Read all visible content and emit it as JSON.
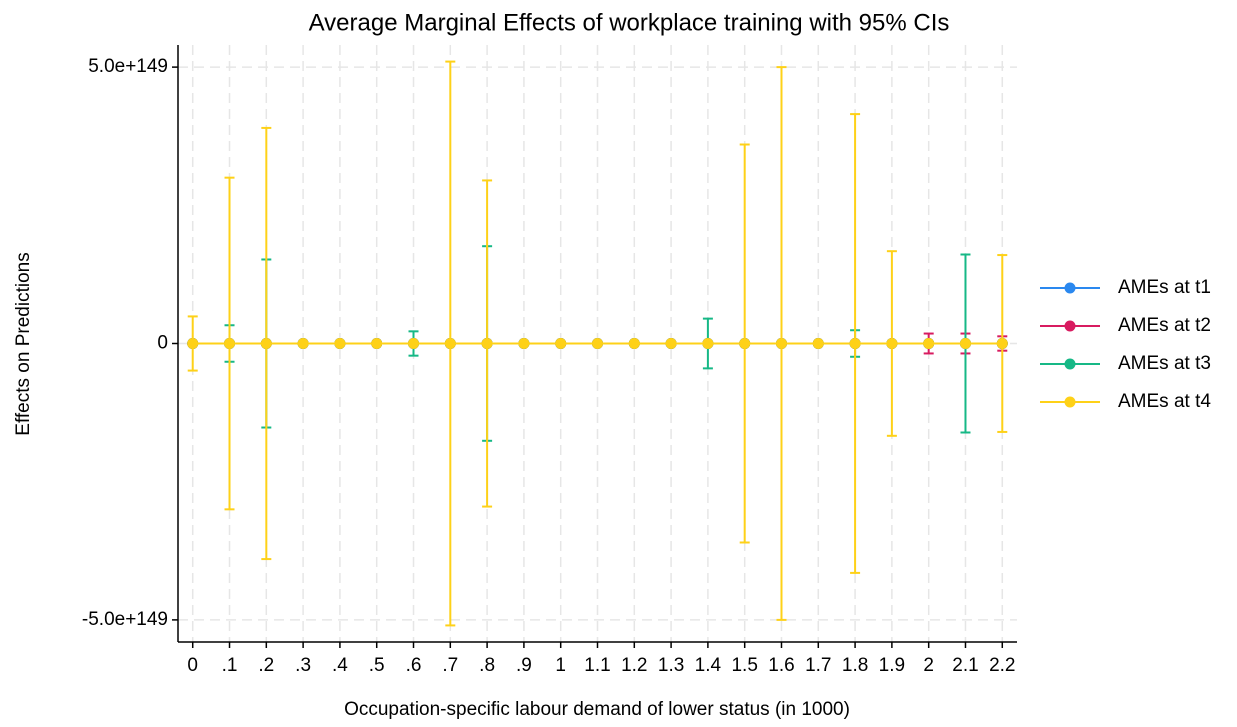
{
  "chart_data": {
    "type": "errorbar",
    "title": "Average Marginal Effects of workplace training with 95% CIs",
    "xlabel": "Occupation-specific labour demand of lower status (in 1000)",
    "ylabel": "Effects on Predictions",
    "x": [
      0,
      0.1,
      0.2,
      0.3,
      0.4,
      0.5,
      0.6,
      0.7,
      0.8,
      0.9,
      1,
      1.1,
      1.2,
      1.3,
      1.4,
      1.5,
      1.6,
      1.7,
      1.8,
      1.9,
      2,
      2.1,
      2.2
    ],
    "xlim": [
      -0.04,
      2.24
    ],
    "xticks": [
      0,
      {
        "value": 0.1,
        "label": ".1"
      },
      {
        "value": 0.2,
        "label": ".2"
      },
      {
        "value": 0.3,
        "label": ".3"
      },
      {
        "value": 0.4,
        "label": ".4"
      },
      {
        "value": 0.5,
        "label": ".5"
      },
      {
        "value": 0.6,
        "label": ".6"
      },
      {
        "value": 0.7,
        "label": ".7"
      },
      {
        "value": 0.8,
        "label": ".8"
      },
      {
        "value": 0.9,
        "label": ".9"
      },
      1,
      1.1,
      1.2,
      1.3,
      1.4,
      1.5,
      1.6,
      1.7,
      1.8,
      1.9,
      2,
      2.1,
      2.2
    ],
    "ylim": [
      -5.4e+149,
      5.4e+149
    ],
    "yticks": [
      {
        "value": -5e+149,
        "label": "-5.0e+149"
      },
      0,
      {
        "value": 5e+149,
        "label": "5.0e+149"
      }
    ],
    "grid": true,
    "legend": "right",
    "series": [
      {
        "name": "AMEs at t1",
        "color": "#2a88ef",
        "values": [
          0,
          0,
          0,
          0,
          0,
          0,
          0,
          0,
          0,
          0,
          0,
          0,
          0,
          0,
          0,
          0,
          0,
          0,
          0,
          0,
          0,
          0,
          0
        ],
        "errors": [
          0,
          0,
          0,
          0,
          0,
          0,
          0,
          0,
          0,
          0,
          0,
          0,
          0,
          0,
          0,
          0,
          0,
          0,
          0,
          0,
          0,
          0,
          0
        ]
      },
      {
        "name": "AMEs at t2",
        "color": "#d81b60",
        "values": [
          0,
          0,
          0,
          0,
          0,
          0,
          0,
          0,
          0,
          0,
          0,
          0,
          0,
          0,
          0,
          0,
          0,
          0,
          0,
          0,
          0,
          0,
          0
        ],
        "errors": [
          0,
          0,
          0,
          0,
          0,
          0,
          0,
          0,
          0,
          0,
          0,
          0,
          0,
          0,
          0,
          0,
          0,
          0,
          0,
          0,
          1.8e+148,
          1.8e+148,
          1.3e+148
        ]
      },
      {
        "name": "AMEs at t3",
        "color": "#16b886",
        "values": [
          0,
          0,
          0,
          0,
          0,
          0,
          0,
          0,
          0,
          0,
          0,
          0,
          0,
          0,
          0,
          0,
          0,
          0,
          0,
          0,
          0,
          0,
          0
        ],
        "errors": [
          0,
          3.3e+148,
          1.52e+149,
          0,
          0,
          0,
          2.2e+148,
          0,
          1.76e+149,
          0,
          0,
          0,
          0,
          0,
          4.5e+148,
          0,
          0,
          0,
          2.4e+148,
          0,
          0,
          1.61e+149,
          0
        ]
      },
      {
        "name": "AMEs at t4",
        "color": "#fed118",
        "values": [
          0,
          0,
          0,
          0,
          0,
          0,
          0,
          0,
          0,
          0,
          0,
          0,
          0,
          0,
          0,
          0,
          0,
          0,
          0,
          0,
          0,
          0,
          0
        ],
        "errors": [
          4.9e+148,
          3e+149,
          3.9e+149,
          0,
          0,
          0,
          0,
          5.1e+149,
          2.95e+149,
          0,
          0,
          0,
          0,
          0,
          0,
          3.6e+149,
          5e+149,
          0,
          4.15e+149,
          1.67e+149,
          0,
          0,
          1.6e+149
        ]
      }
    ]
  }
}
